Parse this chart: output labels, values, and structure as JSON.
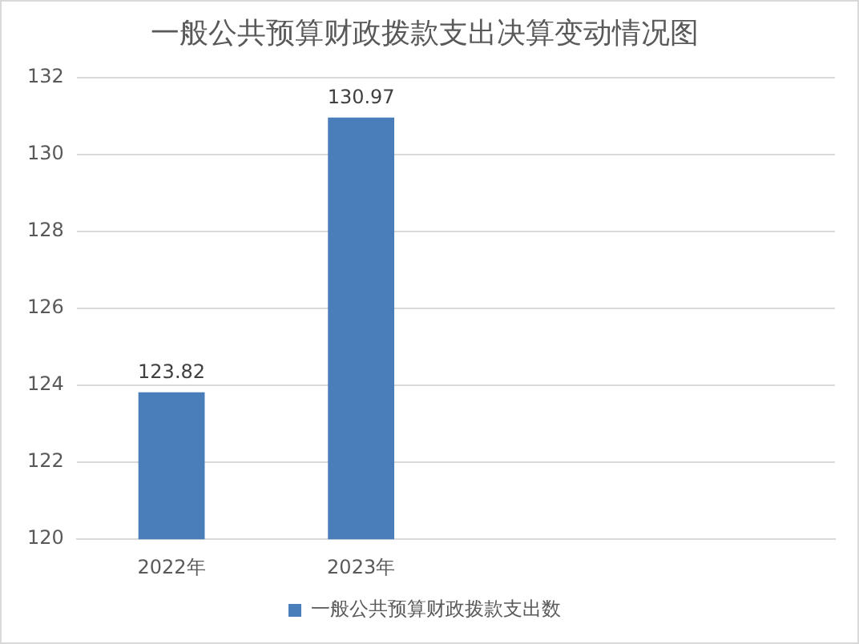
{
  "chart_data": {
    "type": "bar",
    "title": "一般公共预算财政拨款支出决算变动情况图",
    "categories": [
      "2022年",
      "2023年",
      null,
      null
    ],
    "series": [
      {
        "name": "一般公共预算财政拨款支出数",
        "color": "#4a7ebb",
        "values": [
          123.82,
          130.97,
          null,
          null
        ]
      }
    ],
    "ylim": [
      120,
      132
    ],
    "yticks": [
      120,
      122,
      124,
      126,
      128,
      130,
      132
    ],
    "grid": "y",
    "legend": "bottom",
    "data_labels": true
  }
}
